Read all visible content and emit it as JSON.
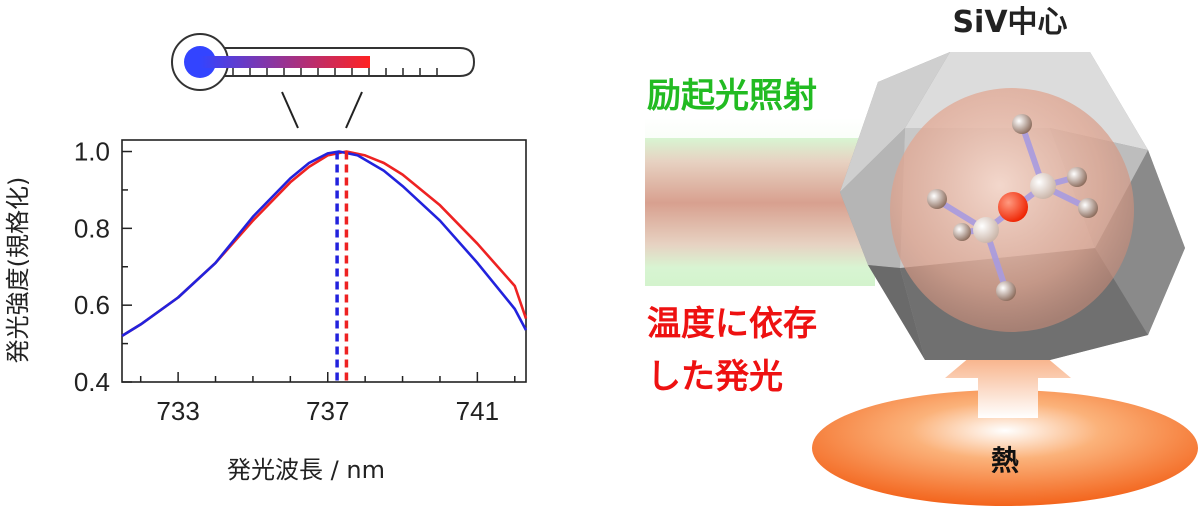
{
  "chart_data": {
    "type": "line",
    "xlabel": "発光波長 / nm",
    "ylabel": "発光強度(規格化)",
    "xlim": [
      731.5,
      742.3
    ],
    "ylim": [
      0.4,
      1.03
    ],
    "xticks": [
      "733",
      "737",
      "741"
    ],
    "yticks": [
      "0.4",
      "0.6",
      "0.8",
      "1.0"
    ],
    "grid": false,
    "series": [
      {
        "color": "#ee2222",
        "x": [
          731.5,
          732.0,
          733.0,
          734.0,
          735.0,
          736.0,
          736.5,
          737.0,
          737.5,
          738.0,
          738.5,
          739.0,
          740.0,
          741.0,
          742.0,
          742.3
        ],
        "y": [
          0.52,
          0.55,
          0.62,
          0.71,
          0.82,
          0.92,
          0.96,
          0.99,
          1.0,
          0.99,
          0.97,
          0.94,
          0.86,
          0.76,
          0.65,
          0.565
        ]
      },
      {
        "color": "#2222dd",
        "x": [
          731.5,
          732.0,
          733.0,
          734.0,
          735.0,
          736.0,
          736.5,
          737.0,
          737.3,
          737.8,
          738.5,
          739.0,
          740.0,
          741.0,
          742.0,
          742.3
        ],
        "y": [
          0.52,
          0.55,
          0.62,
          0.71,
          0.83,
          0.93,
          0.97,
          0.995,
          1.0,
          0.99,
          0.95,
          0.91,
          0.82,
          0.71,
          0.59,
          0.535
        ]
      }
    ],
    "peak_markers": [
      {
        "x": 737.25,
        "color": "#2222dd"
      },
      {
        "x": 737.5,
        "color": "#ee2222"
      }
    ]
  },
  "diagram": {
    "title": "SiV中心",
    "excitation_label": "励起光照射",
    "emission_label_line1": "温度に依存",
    "emission_label_line2": "した発光",
    "heat_label": "熱"
  }
}
